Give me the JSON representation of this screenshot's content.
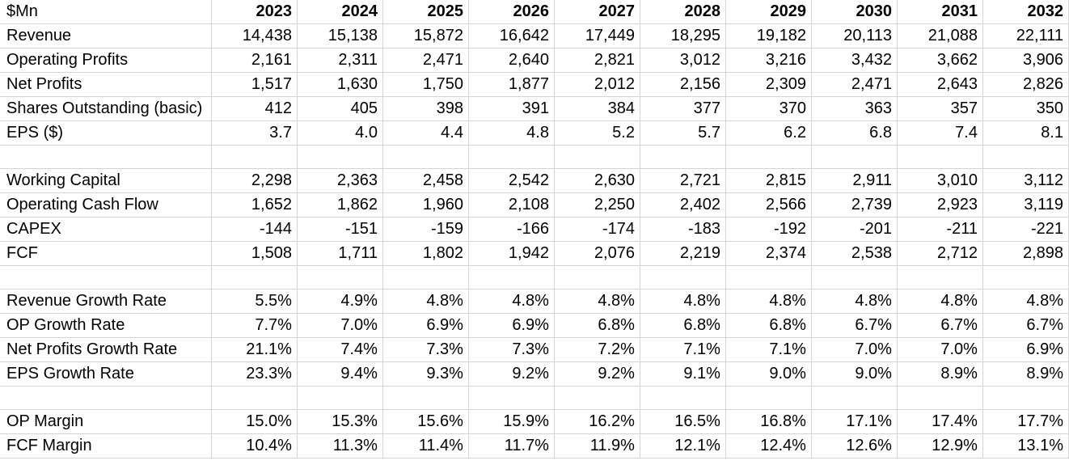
{
  "sheet": {
    "corner_label": "$Mn",
    "years": [
      "2023",
      "2024",
      "2025",
      "2026",
      "2027",
      "2028",
      "2029",
      "2030",
      "2031",
      "2032"
    ],
    "rows": [
      {
        "label": "Revenue",
        "values": [
          "14,438",
          "15,138",
          "15,872",
          "16,642",
          "17,449",
          "18,295",
          "19,182",
          "20,113",
          "21,088",
          "22,111"
        ]
      },
      {
        "label": "Operating Profits",
        "values": [
          "2,161",
          "2,311",
          "2,471",
          "2,640",
          "2,821",
          "3,012",
          "3,216",
          "3,432",
          "3,662",
          "3,906"
        ]
      },
      {
        "label": "Net Profits",
        "values": [
          "1,517",
          "1,630",
          "1,750",
          "1,877",
          "2,012",
          "2,156",
          "2,309",
          "2,471",
          "2,643",
          "2,826"
        ]
      },
      {
        "label": "Shares Outstanding (basic)",
        "values": [
          "412",
          "405",
          "398",
          "391",
          "384",
          "377",
          "370",
          "363",
          "357",
          "350"
        ]
      },
      {
        "label": "EPS ($)",
        "values": [
          "3.7",
          "4.0",
          "4.4",
          "4.8",
          "5.2",
          "5.7",
          "6.2",
          "6.8",
          "7.4",
          "8.1"
        ]
      },
      {
        "label": "",
        "values": []
      },
      {
        "label": "Working Capital",
        "values": [
          "2,298",
          "2,363",
          "2,458",
          "2,542",
          "2,630",
          "2,721",
          "2,815",
          "2,911",
          "3,010",
          "3,112"
        ]
      },
      {
        "label": "Operating Cash Flow",
        "values": [
          "1,652",
          "1,862",
          "1,960",
          "2,108",
          "2,250",
          "2,402",
          "2,566",
          "2,739",
          "2,923",
          "3,119"
        ]
      },
      {
        "label": "CAPEX",
        "values": [
          "-144",
          "-151",
          "-159",
          "-166",
          "-174",
          "-183",
          "-192",
          "-201",
          "-211",
          "-221"
        ]
      },
      {
        "label": "FCF",
        "values": [
          "1,508",
          "1,711",
          "1,802",
          "1,942",
          "2,076",
          "2,219",
          "2,374",
          "2,538",
          "2,712",
          "2,898"
        ]
      },
      {
        "label": "",
        "values": []
      },
      {
        "label": "Revenue Growth Rate",
        "values": [
          "5.5%",
          "4.9%",
          "4.8%",
          "4.8%",
          "4.8%",
          "4.8%",
          "4.8%",
          "4.8%",
          "4.8%",
          "4.8%"
        ]
      },
      {
        "label": "OP Growth Rate",
        "values": [
          "7.7%",
          "7.0%",
          "6.9%",
          "6.9%",
          "6.8%",
          "6.8%",
          "6.8%",
          "6.7%",
          "6.7%",
          "6.7%"
        ]
      },
      {
        "label": "Net Profits Growth Rate",
        "values": [
          "21.1%",
          "7.4%",
          "7.3%",
          "7.3%",
          "7.2%",
          "7.1%",
          "7.1%",
          "7.0%",
          "7.0%",
          "6.9%"
        ]
      },
      {
        "label": "EPS Growth Rate",
        "values": [
          "23.3%",
          "9.4%",
          "9.3%",
          "9.2%",
          "9.2%",
          "9.1%",
          "9.0%",
          "9.0%",
          "8.9%",
          "8.9%"
        ]
      },
      {
        "label": "",
        "values": []
      },
      {
        "label": "OP Margin",
        "values": [
          "15.0%",
          "15.3%",
          "15.6%",
          "15.9%",
          "16.2%",
          "16.5%",
          "16.8%",
          "17.1%",
          "17.4%",
          "17.7%"
        ]
      },
      {
        "label": "FCF Margin",
        "values": [
          "10.4%",
          "11.3%",
          "11.4%",
          "11.7%",
          "11.9%",
          "12.1%",
          "12.4%",
          "12.6%",
          "12.9%",
          "13.1%"
        ]
      }
    ]
  }
}
